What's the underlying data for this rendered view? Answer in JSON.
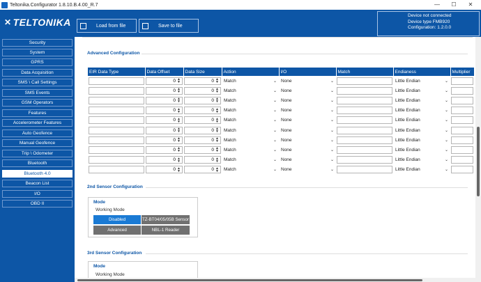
{
  "window": {
    "title": "Teltonika.Configurator 1.8.10.B.4.00_R.7",
    "minimize": "—",
    "maximize": "☐",
    "close": "✕"
  },
  "header": {
    "logo_text": "TELTONIKA",
    "load_button": "Load from file",
    "save_button": "Save to file",
    "status_lines": [
      "Device not connected",
      "Device type FMB920",
      "Configuration: 1.2.0.0"
    ]
  },
  "sidebar": {
    "items": [
      "Security",
      "System",
      "GPRS",
      "Data Acquisition",
      "SMS \\ Call Settings",
      "SMS Events",
      "GSM Operators",
      "Features",
      "Accelerometer Features",
      "Auto Geofence",
      "Manual Geofence",
      "Trip \\ Odometer",
      "Bluetooth",
      "Bluetooth 4.0",
      "Beacon List",
      "I/O",
      "OBD II"
    ],
    "active": "Bluetooth 4.0"
  },
  "advanced": {
    "title": "Advanced Configuration",
    "columns": [
      "EIR Data Type",
      "Data Offset",
      "Data Size",
      "Action",
      "I/O",
      "Match",
      "Endianess",
      "Multiplier"
    ],
    "rows": [
      {
        "offset": "0",
        "size": "0",
        "action": "Match",
        "io": "None",
        "endian": "Little Endian"
      },
      {
        "offset": "0",
        "size": "0",
        "action": "Match",
        "io": "None",
        "endian": "Little Endian"
      },
      {
        "offset": "0",
        "size": "0",
        "action": "Match",
        "io": "None",
        "endian": "Little Endian"
      },
      {
        "offset": "0",
        "size": "0",
        "action": "Match",
        "io": "None",
        "endian": "Little Endian"
      },
      {
        "offset": "0",
        "size": "0",
        "action": "Match",
        "io": "None",
        "endian": "Little Endian"
      },
      {
        "offset": "0",
        "size": "0",
        "action": "Match",
        "io": "None",
        "endian": "Little Endian"
      },
      {
        "offset": "0",
        "size": "0",
        "action": "Match",
        "io": "None",
        "endian": "Little Endian"
      },
      {
        "offset": "0",
        "size": "0",
        "action": "Match",
        "io": "None",
        "endian": "Little Endian"
      },
      {
        "offset": "0",
        "size": "0",
        "action": "Match",
        "io": "None",
        "endian": "Little Endian"
      },
      {
        "offset": "0",
        "size": "0",
        "action": "Match",
        "io": "None",
        "endian": "Little Endian"
      }
    ]
  },
  "sensor2": {
    "title": "2nd Sensor Configuration",
    "mode_title": "Mode",
    "working_mode": "Working Mode",
    "buttons": [
      "Disabled",
      "TZ-BT04/05/05B Sensor",
      "Advanced",
      "NBL-1 Reader"
    ]
  },
  "sensor3": {
    "title": "3rd Sensor Configuration",
    "mode_title": "Mode",
    "working_mode": "Working Mode"
  },
  "colors": {
    "brand": "#0d56a6",
    "selected": "#1a7ad4",
    "unselected": "#707070"
  }
}
